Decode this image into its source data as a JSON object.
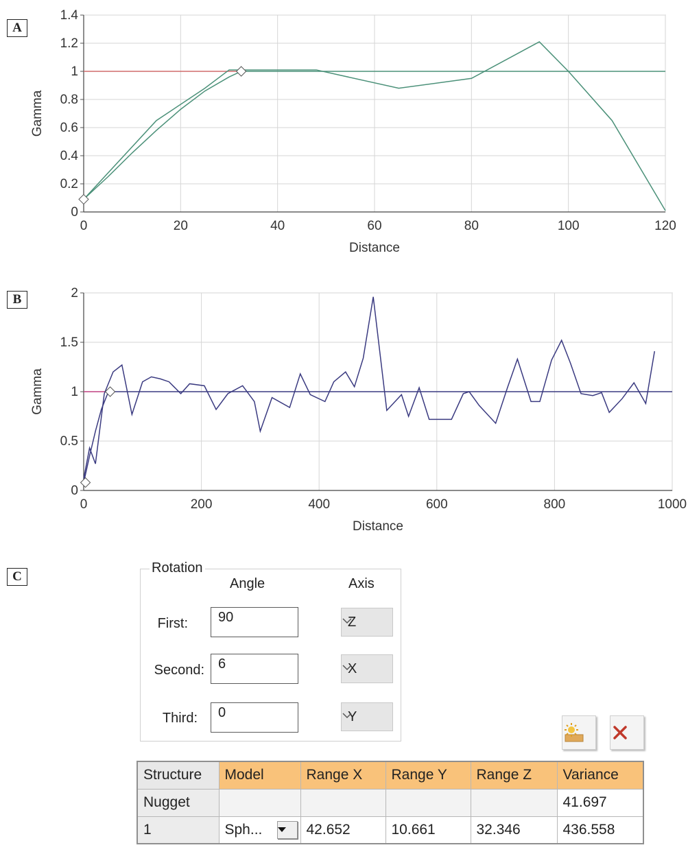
{
  "panel_labels": {
    "a": "A",
    "b": "B",
    "c": "C"
  },
  "chart_data": [
    {
      "type": "line",
      "panel": "A",
      "xlabel": "Distance",
      "ylabel": "Gamma",
      "xlim": [
        0,
        120
      ],
      "ylim": [
        0,
        1.4
      ],
      "xticks": [
        "0",
        "20",
        "40",
        "60",
        "80",
        "100",
        "120"
      ],
      "yticks": [
        "0",
        "0.2",
        "0.4",
        "0.6",
        "0.8",
        "1",
        "1.2",
        "1.4"
      ],
      "grid": true,
      "colors": {
        "experimental": "#4a9078",
        "model": "#4a9078",
        "sill": "#d06b6b"
      },
      "series": [
        {
          "values_x": [
            0,
            15,
            25,
            30,
            48,
            65,
            80,
            94,
            100,
            109,
            120
          ],
          "values_y": [
            0.09,
            0.65,
            0.88,
            1.01,
            1.01,
            0.88,
            0.95,
            1.21,
            1.0,
            0.65,
            0.01
          ]
        },
        {
          "values_x": [
            0,
            5,
            10,
            15,
            20,
            25,
            30,
            32.5,
            120
          ],
          "values_y": [
            0.09,
            0.25,
            0.42,
            0.58,
            0.73,
            0.86,
            0.96,
            1.0,
            1.0
          ]
        }
      ],
      "sill": 1.0,
      "markers": [
        {
          "x": 0,
          "y": 0.09
        },
        {
          "x": 32.5,
          "y": 1.0
        }
      ]
    },
    {
      "type": "line",
      "panel": "B",
      "xlabel": "Distance",
      "ylabel": "Gamma",
      "xlim": [
        0,
        1000
      ],
      "ylim": [
        0,
        2
      ],
      "xticks": [
        "0",
        "200",
        "400",
        "600",
        "800",
        "1000"
      ],
      "yticks": [
        "0",
        "0.5",
        "1",
        "1.5",
        "2"
      ],
      "grid": true,
      "colors": {
        "experimental": "#3a3a80",
        "model": "#3a3a80",
        "sill": "#c04080"
      },
      "series": [
        {
          "values_x": [
            0,
            10,
            20,
            35,
            50,
            65,
            82,
            100,
            115,
            130,
            145,
            165,
            180,
            205,
            225,
            245,
            270,
            290,
            300,
            320,
            350,
            368,
            385,
            410,
            425,
            445,
            460,
            475,
            492,
            515,
            540,
            552,
            570,
            587,
            610,
            625,
            645,
            655,
            672,
            700,
            720,
            737,
            760,
            775,
            795,
            812,
            827,
            845,
            865,
            880,
            893,
            915,
            935,
            955,
            970
          ],
          "values_y": [
            0.12,
            0.43,
            0.27,
            0.98,
            1.2,
            1.27,
            0.77,
            1.1,
            1.15,
            1.13,
            1.1,
            0.98,
            1.08,
            1.06,
            0.82,
            0.98,
            1.06,
            0.9,
            0.6,
            0.94,
            0.84,
            1.18,
            0.97,
            0.9,
            1.1,
            1.2,
            1.05,
            1.34,
            1.96,
            0.81,
            0.97,
            0.75,
            1.04,
            0.72,
            0.72,
            0.72,
            0.98,
            1.0,
            0.86,
            0.68,
            1.04,
            1.33,
            0.9,
            0.9,
            1.32,
            1.52,
            1.29,
            0.98,
            0.96,
            0.99,
            0.79,
            0.93,
            1.09,
            0.88,
            1.41
          ]
        },
        {
          "values_x": [
            0,
            10,
            20,
            30,
            40,
            45,
            1000
          ],
          "values_y": [
            0.08,
            0.35,
            0.6,
            0.82,
            0.97,
            1.0,
            1.0
          ]
        }
      ],
      "sill": 1.0,
      "markers": [
        {
          "x": 3,
          "y": 0.08
        },
        {
          "x": 45,
          "y": 1.0
        }
      ]
    }
  ],
  "rotation": {
    "title": "Rotation",
    "angle_header": "Angle",
    "axis_header": "Axis",
    "rows": [
      {
        "label": "First:",
        "angle": "90",
        "axis": "Z"
      },
      {
        "label": "Second:",
        "angle": "6",
        "axis": "X"
      },
      {
        "label": "Third:",
        "angle": "0",
        "axis": "Y"
      }
    ]
  },
  "toolbar": {
    "add_icon": "add-structure-icon",
    "delete_icon": "delete-icon",
    "delete_color": "#c0392b"
  },
  "table": {
    "headers": [
      "Structure",
      "Model",
      "Range X",
      "Range Y",
      "Range Z",
      "Variance"
    ],
    "nugget": {
      "structure": "Nugget",
      "variance": "41.697"
    },
    "row1": {
      "structure": "1",
      "model": "Sph...",
      "range_x": "42.652",
      "range_y": "10.661",
      "range_z": "32.346",
      "variance": "436.558"
    }
  }
}
